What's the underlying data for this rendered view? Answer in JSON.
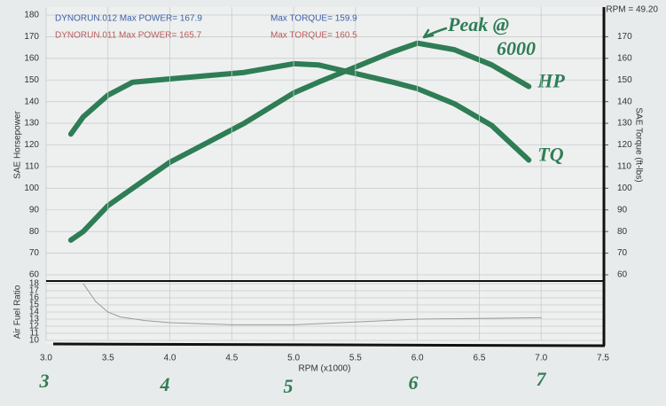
{
  "header": {
    "rpm_note": "RPM = 49.20"
  },
  "chart_data": [
    {
      "type": "line",
      "legend_lines": [
        {
          "text": "DYNORUN.012   Max POWER= 167.9",
          "color": "#3b5fa8"
        },
        {
          "text": "Max TORQUE= 159.9",
          "color": "#3b5fa8"
        },
        {
          "text": "DYNORUN.011   Max POWER= 165.7",
          "color": "#b85a5a"
        },
        {
          "text": "Max TORQUE= 160.5",
          "color": "#b85a5a"
        }
      ],
      "ylabel": "SAE Horsepower",
      "y2label": "SAE Torque (ft-lbs)",
      "annotations": [
        "Peak @",
        "6000",
        "3",
        "4",
        "5",
        "6",
        "7"
      ],
      "xlim": [
        3,
        7.5
      ],
      "ylim": [
        60,
        180
      ],
      "yticks": [
        60,
        70,
        80,
        90,
        100,
        110,
        120,
        130,
        140,
        150,
        160,
        170,
        180
      ],
      "y2lim": [
        60,
        180
      ],
      "y2ticks": [
        60,
        70,
        80,
        90,
        100,
        110,
        120,
        130,
        140,
        150,
        160,
        170
      ],
      "grid": true,
      "x": [
        3.2,
        3.3,
        3.5,
        3.7,
        4.0,
        4.3,
        4.6,
        5.0,
        5.2,
        5.5,
        5.8,
        6.0,
        6.3,
        6.6,
        6.9
      ],
      "series": [
        {
          "name": "HP",
          "color": "#2f7d55",
          "values": [
            76,
            80,
            92,
            100,
            112,
            121,
            130,
            144,
            149,
            156,
            163,
            167,
            164,
            157,
            147
          ]
        },
        {
          "name": "TQ",
          "color": "#2f7d55",
          "axis": "y2",
          "values": [
            125,
            133,
            143,
            149,
            150.5,
            152,
            153.5,
            157.5,
            157,
            153,
            149,
            146,
            139,
            129,
            113
          ]
        }
      ]
    },
    {
      "type": "line",
      "ylabel": "Air Fuel Ratio",
      "xlabel": "RPM (x1000)",
      "xlim": [
        3,
        7.5
      ],
      "xticks": [
        {
          "value": 3,
          "label": "3.0"
        },
        3.5,
        {
          "value": 4,
          "label": "4.0"
        },
        4.5,
        {
          "value": 5,
          "label": "5.0"
        },
        5.5,
        {
          "value": 6,
          "label": "6.0"
        },
        6.5,
        {
          "value": 7,
          "label": "7.0"
        },
        7.5
      ],
      "ylim": [
        10,
        18
      ],
      "yticks": [
        10,
        11,
        12,
        13,
        14,
        15,
        16,
        17,
        18
      ],
      "grid": true,
      "x": [
        3.3,
        3.4,
        3.5,
        3.6,
        3.8,
        4.0,
        4.5,
        5.0,
        5.5,
        6.0,
        6.5,
        7.0
      ],
      "series": [
        {
          "name": "AFR",
          "color": "#9a9a9a",
          "values": [
            18,
            15.5,
            14,
            13.3,
            12.8,
            12.5,
            12.2,
            12.2,
            12.6,
            13,
            13.1,
            13.2
          ]
        }
      ]
    }
  ]
}
